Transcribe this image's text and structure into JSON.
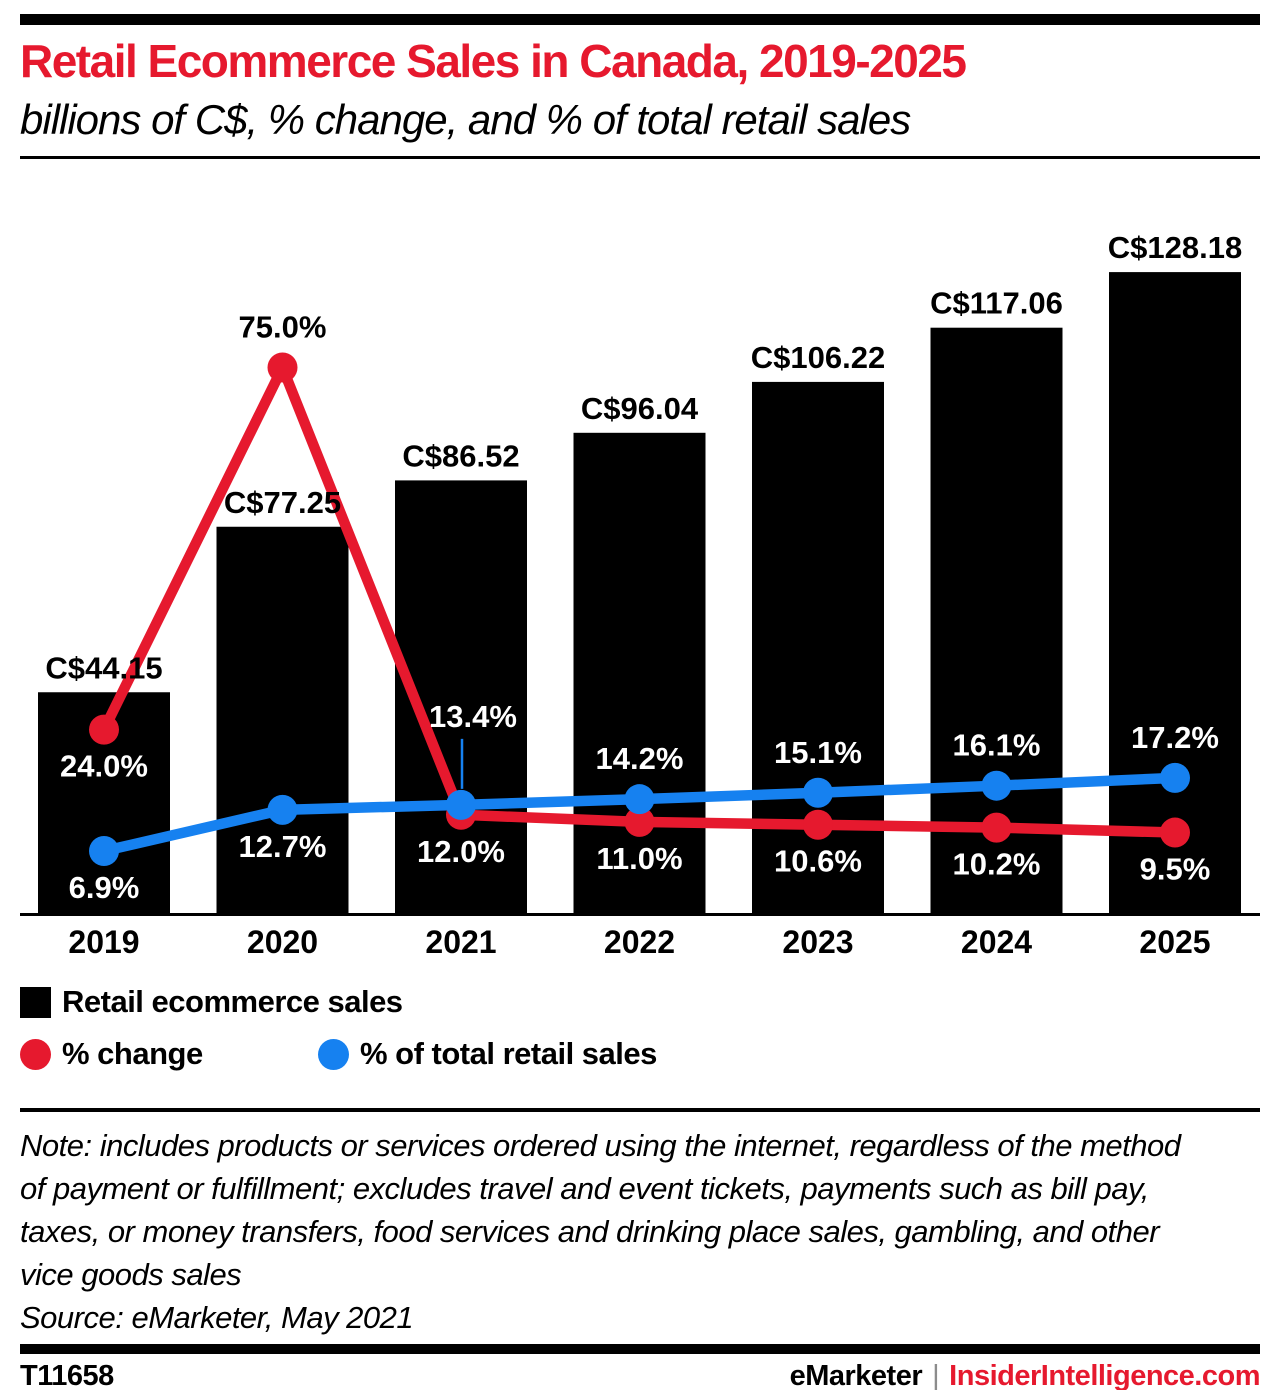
{
  "header": {
    "title": "Retail Ecommerce Sales in Canada, 2019-2025",
    "subtitle": "billions of C$, % change, and % of total retail sales"
  },
  "chart_data": {
    "type": "bar",
    "subtype": "bar-with-two-lines",
    "title": "Retail Ecommerce Sales in Canada, 2019-2025",
    "categories": [
      "2019",
      "2020",
      "2021",
      "2022",
      "2023",
      "2024",
      "2025"
    ],
    "series": [
      {
        "name": "Retail ecommerce sales",
        "kind": "bar",
        "unit": "billions of C$",
        "color": "#000000",
        "values": [
          44.15,
          77.25,
          86.52,
          96.04,
          106.22,
          117.06,
          128.18
        ],
        "labels": [
          "C$44.15",
          "C$77.25",
          "C$86.52",
          "C$96.04",
          "C$106.22",
          "C$117.06",
          "C$128.18"
        ]
      },
      {
        "name": "% change",
        "kind": "line",
        "unit": "% change",
        "color": "#e6192e",
        "values": [
          24.0,
          75.0,
          12.0,
          11.0,
          10.6,
          10.2,
          9.5
        ],
        "labels": [
          "24.0%",
          "75.0%",
          "12.0%",
          "11.0%",
          "10.6%",
          "10.2%",
          "9.5%"
        ]
      },
      {
        "name": "% of total retail sales",
        "kind": "line",
        "unit": "% of total retail sales",
        "color": "#1681f0",
        "values": [
          6.9,
          12.7,
          13.4,
          14.2,
          15.1,
          16.1,
          17.2
        ],
        "labels": [
          "6.9%",
          "12.7%",
          "13.4%",
          "14.2%",
          "15.1%",
          "16.1%",
          "17.2%"
        ]
      }
    ],
    "legend_position": "bottom",
    "grid": false,
    "y_axis_visible": false
  },
  "notes": {
    "note": "Note: includes products or services ordered using the internet, regardless of the method of payment or fulfillment; excludes travel and event tickets, payments such as bill pay, taxes, or money transfers, food services and drinking place sales, gambling, and other vice goods sales",
    "source": "Source: eMarketer, May 2021"
  },
  "footer": {
    "chart_id": "T11658",
    "brand": "eMarketer",
    "separator": "|",
    "site": "InsiderIntelligence.com"
  },
  "colors": {
    "accent_red": "#e6192e",
    "accent_blue": "#1681f0",
    "bar_black": "#000000",
    "separator_gray": "#8c8c8c"
  }
}
